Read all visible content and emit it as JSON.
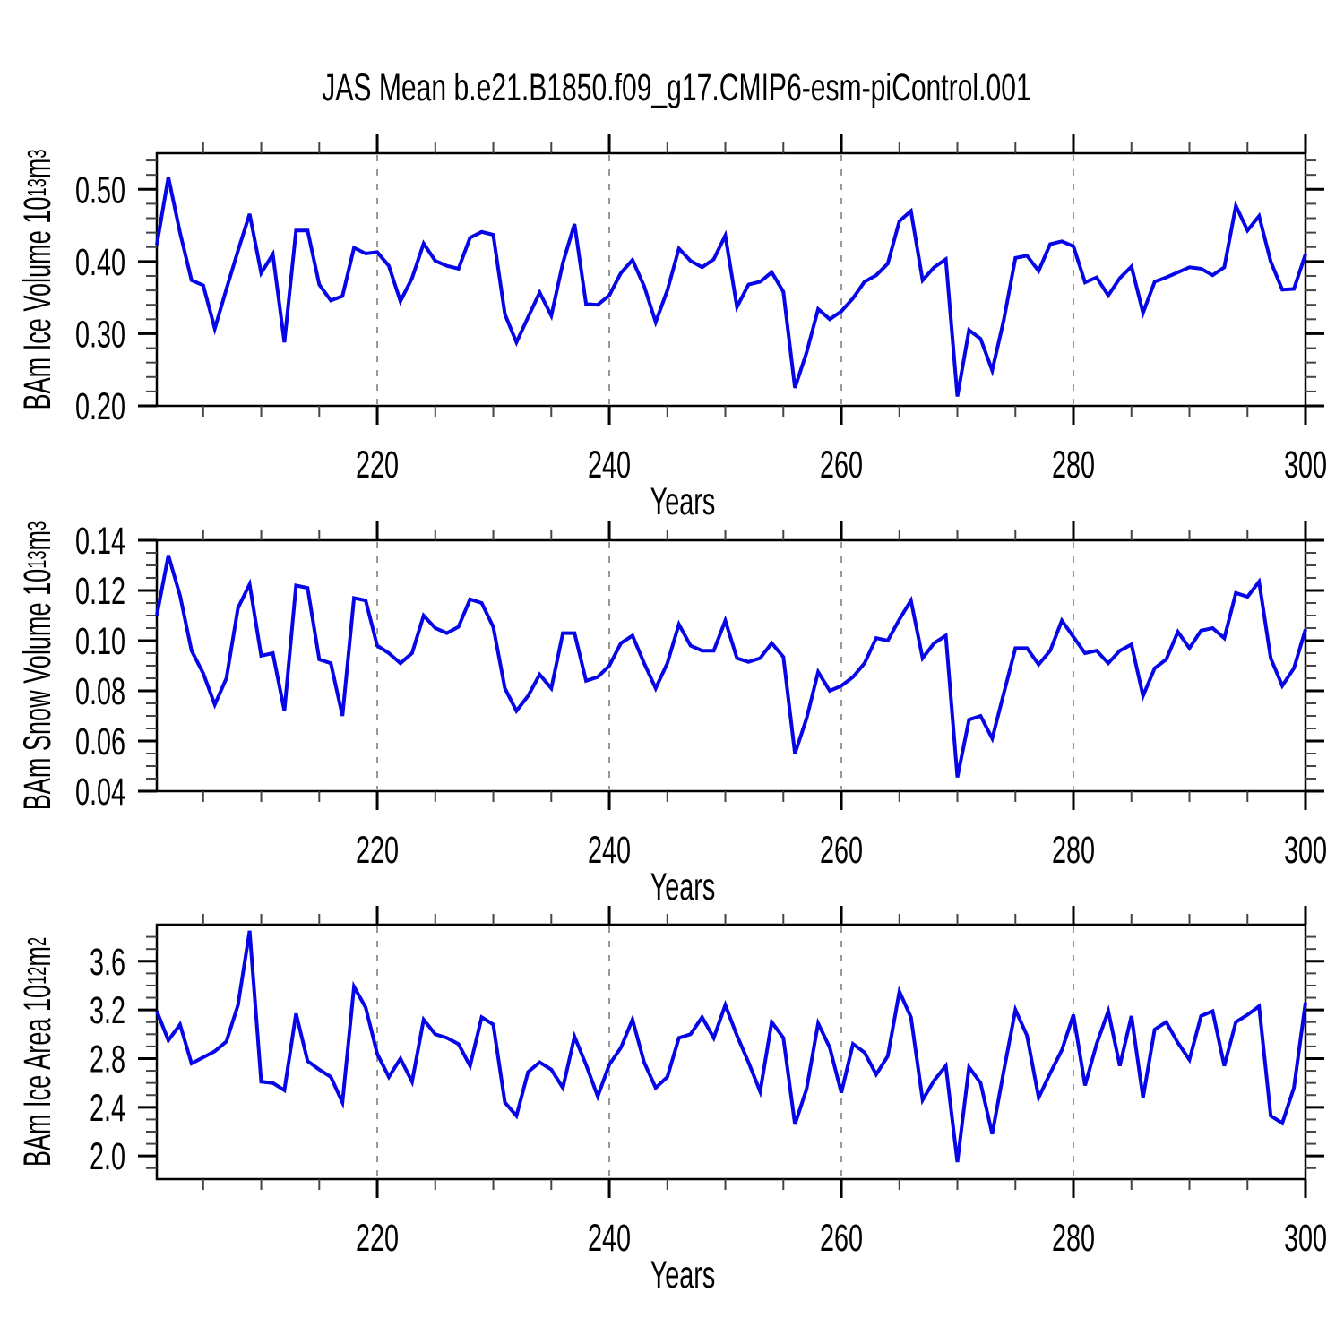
{
  "title": "JAS Mean b.e21.B1850.f09_g17.CMIP6-esm-piControl.001",
  "axis": {
    "x_label": "Years"
  },
  "colors": {
    "line": "#0505e8",
    "frame": "#000000",
    "gridline": "#777777",
    "minor_tick": "#444444"
  },
  "chart_data": {
    "type": "line",
    "title": "JAS Mean b.e21.B1850.f09_g17.CMIP6-esm-piControl.001",
    "xlabel": "Years",
    "x_start": 201,
    "x_end": 300,
    "x_ticks": [
      220,
      240,
      260,
      280,
      300
    ],
    "x_tick_labels": [
      "220",
      "240",
      "260",
      "280",
      "300"
    ],
    "x_minor_step": 5,
    "x_gridlines": [
      220,
      240,
      260,
      280
    ],
    "grid_style": "vertical-dashed",
    "legend": "none",
    "panels": [
      {
        "name": "ice-volume",
        "ylabel_plain": "BAm Ice Volume 10^13 m^3",
        "ylabel": {
          "text": "BAm Ice Volume 10",
          "sup": "13",
          "unit": " m",
          "unit_sup": "3"
        },
        "ylim": [
          0.2,
          0.55
        ],
        "yticks": [
          0.2,
          0.3,
          0.4,
          0.5
        ],
        "ytick_labels": [
          "0.20",
          "0.30",
          "0.40",
          "0.50"
        ],
        "y_minor_step": 0.02,
        "values": [
          0.423,
          0.517,
          0.44,
          0.374,
          0.367,
          0.307,
          0.362,
          0.415,
          0.466,
          0.384,
          0.41,
          0.288,
          0.443,
          0.443,
          0.368,
          0.346,
          0.352,
          0.419,
          0.411,
          0.413,
          0.394,
          0.345,
          0.377,
          0.425,
          0.401,
          0.394,
          0.39,
          0.433,
          0.441,
          0.437,
          0.327,
          0.288,
          0.323,
          0.357,
          0.325,
          0.398,
          0.452,
          0.341,
          0.34,
          0.353,
          0.384,
          0.402,
          0.366,
          0.316,
          0.36,
          0.418,
          0.401,
          0.392,
          0.403,
          0.436,
          0.337,
          0.368,
          0.372,
          0.385,
          0.358,
          0.225,
          0.274,
          0.334,
          0.32,
          0.331,
          0.349,
          0.372,
          0.381,
          0.397,
          0.456,
          0.47,
          0.374,
          0.392,
          0.403,
          0.213,
          0.305,
          0.293,
          0.249,
          0.319,
          0.405,
          0.408,
          0.387,
          0.424,
          0.428,
          0.421,
          0.371,
          0.378,
          0.353,
          0.377,
          0.393,
          0.329,
          0.372,
          0.378,
          0.385,
          0.392,
          0.39,
          0.381,
          0.392,
          0.477,
          0.443,
          0.463,
          0.4,
          0.361,
          0.362,
          0.41
        ]
      },
      {
        "name": "snow-volume",
        "ylabel_plain": "BAm Snow Volume 10^13 m^3",
        "ylabel": {
          "text": "BAm Snow Volume 10",
          "sup": "13",
          "unit": " m",
          "unit_sup": "3"
        },
        "ylim": [
          0.04,
          0.14
        ],
        "yticks": [
          0.04,
          0.06,
          0.08,
          0.1,
          0.12,
          0.14
        ],
        "ytick_labels": [
          "0.04",
          "0.06",
          "0.08",
          "0.10",
          "0.12",
          "0.14"
        ],
        "y_minor_step": 0.005,
        "values": [
          0.11,
          0.134,
          0.118,
          0.096,
          0.087,
          0.0745,
          0.085,
          0.113,
          0.1225,
          0.094,
          0.095,
          0.072,
          0.122,
          0.121,
          0.0925,
          0.091,
          0.07,
          0.117,
          0.116,
          0.098,
          0.095,
          0.091,
          0.095,
          0.11,
          0.105,
          0.103,
          0.1055,
          0.1165,
          0.115,
          0.1055,
          0.081,
          0.072,
          0.078,
          0.0865,
          0.081,
          0.103,
          0.103,
          0.084,
          0.0855,
          0.09,
          0.099,
          0.102,
          0.091,
          0.081,
          0.091,
          0.1065,
          0.098,
          0.096,
          0.096,
          0.108,
          0.093,
          0.0915,
          0.093,
          0.099,
          0.0935,
          0.055,
          0.069,
          0.0875,
          0.08,
          0.082,
          0.0855,
          0.091,
          0.101,
          0.1,
          0.1085,
          0.116,
          0.093,
          0.099,
          0.102,
          0.0455,
          0.0685,
          0.07,
          0.061,
          0.079,
          0.097,
          0.097,
          0.0905,
          0.096,
          0.108,
          0.1015,
          0.095,
          0.096,
          0.091,
          0.096,
          0.0985,
          0.078,
          0.089,
          0.0925,
          0.1035,
          0.097,
          0.104,
          0.105,
          0.101,
          0.119,
          0.1175,
          0.1235,
          0.093,
          0.082,
          0.089,
          0.1045
        ]
      },
      {
        "name": "ice-area",
        "ylabel_plain": "BAm Ice Area 10^12 m^2",
        "ylabel": {
          "text": "BAm Ice Area 10",
          "sup": "12",
          "unit": " m",
          "unit_sup": "2"
        },
        "ylim": [
          1.81,
          3.9
        ],
        "yticks": [
          2.0,
          2.4,
          2.8,
          3.2,
          3.6
        ],
        "ytick_labels": [
          "2.0",
          "2.4",
          "2.8",
          "3.2",
          "3.6"
        ],
        "y_minor_step": 0.1,
        "values": [
          3.19,
          2.95,
          3.08,
          2.76,
          2.81,
          2.86,
          2.94,
          3.24,
          3.85,
          2.61,
          2.6,
          2.54,
          3.17,
          2.78,
          2.71,
          2.65,
          2.44,
          3.39,
          3.22,
          2.84,
          2.65,
          2.8,
          2.61,
          3.12,
          3.0,
          2.97,
          2.92,
          2.74,
          3.14,
          3.08,
          2.44,
          2.33,
          2.69,
          2.77,
          2.71,
          2.56,
          2.98,
          2.75,
          2.49,
          2.75,
          2.89,
          3.12,
          2.77,
          2.56,
          2.65,
          2.97,
          3.0,
          3.14,
          2.97,
          3.24,
          2.99,
          2.77,
          2.53,
          3.1,
          2.97,
          2.26,
          2.55,
          3.09,
          2.89,
          2.52,
          2.92,
          2.85,
          2.67,
          2.82,
          3.35,
          3.14,
          2.46,
          2.62,
          2.74,
          1.95,
          2.73,
          2.6,
          2.18,
          2.7,
          3.2,
          2.99,
          2.48,
          2.68,
          2.87,
          3.16,
          2.58,
          2.92,
          3.19,
          2.74,
          3.15,
          2.48,
          3.04,
          3.1,
          2.93,
          2.79,
          3.15,
          3.19,
          2.74,
          3.1,
          3.16,
          3.23,
          2.33,
          2.27,
          2.56,
          3.26
        ]
      }
    ]
  }
}
